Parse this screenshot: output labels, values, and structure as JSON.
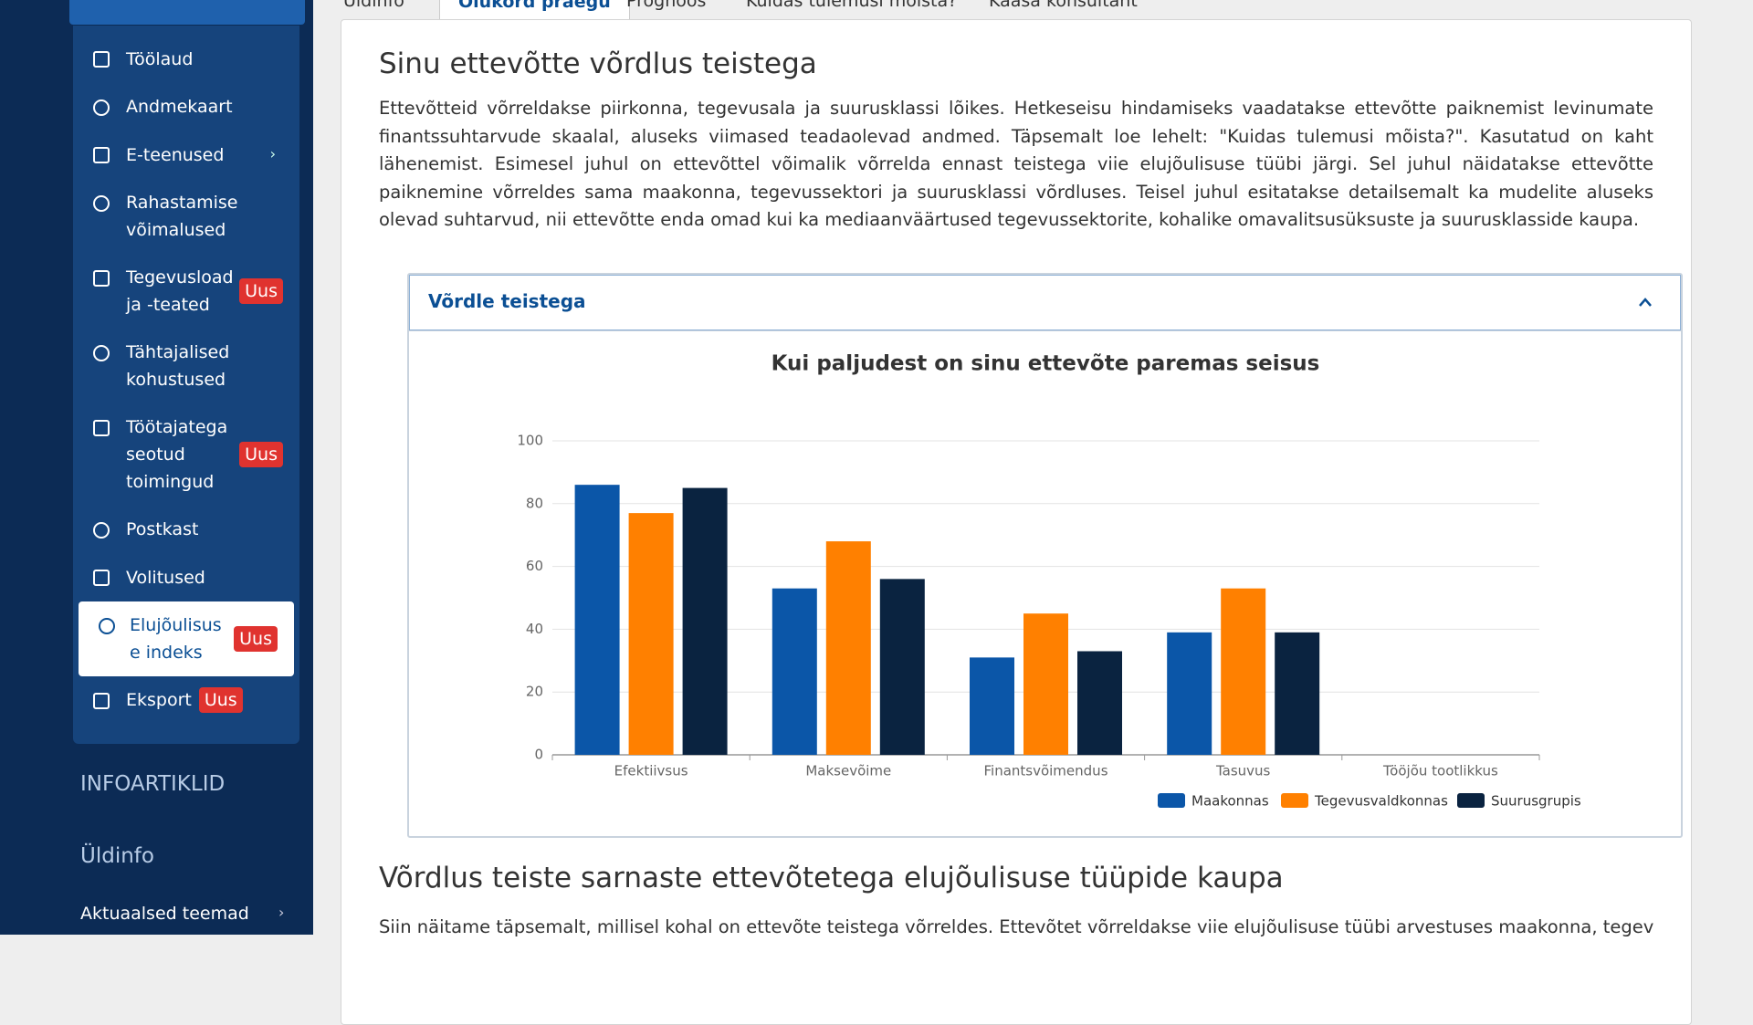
{
  "sidebar": {
    "items": [
      {
        "label": "Töölaud"
      },
      {
        "label": "Andmekaart"
      },
      {
        "label": "E-teenused"
      },
      {
        "label": "Rahastamise võimalused"
      },
      {
        "label": "Tegevusload ja -teated",
        "badge": "Uus"
      },
      {
        "label": "Tähtajalised kohustused"
      },
      {
        "label": "Töötajatega seotud toimingud",
        "badge": "Uus"
      },
      {
        "label": "Postkast"
      },
      {
        "label": "Volitused"
      },
      {
        "label": "Elujõulisuse indeks",
        "badge": "Uus"
      },
      {
        "label": "Eksport",
        "badge": "Uus"
      }
    ],
    "sections": [
      "INFOARTIKLID",
      "Üldinfo",
      "Aktuaalsed teemad"
    ]
  },
  "tabs": [
    "Üldinfo",
    "Olukord praegu",
    "Prognoos",
    "Kuidas tulemusi mõista?",
    "Kaasa konsultant"
  ],
  "content": {
    "heading": "Sinu ettevõtte võrdlus teistega",
    "paragraph": "Ettevõtteid võrreldakse piirkonna, tegevusala ja suurusklassi lõikes. Hetkeseisu hindamiseks vaadatakse ettevõtte paiknemist levinumate finantssuhtarvude skaalal, aluseks viimased teadaolevad andmed. Täpsemalt loe lehelt: \"Kuidas tulemusi mõista?\". Kasutatud on kaht lähenemist. Esimesel juhul on ettevõttel võimalik võrrelda ennast teistega viie elujõulisuse tüübi järgi. Sel juhul näidatakse ettevõtte paiknemine võrreldes sama maakonna, tegevussektori ja suurusklassi võrdluses. Teisel juhul esitatakse detailsemalt ka mudelite aluseks olevad suhtarvud, nii ettevõtte enda omad kui ka mediaanväärtused tegevussektorite, kohalike omavalitsusüksuste ja suurusklasside kaupa.",
    "accordion_title": "Võrdle teistega",
    "heading2": "Võrdlus teiste sarnaste ettevõtetega elujõulisuse tüüpide kaupa",
    "paragraph2": "Siin näitame täpsemalt, millisel kohal on ettevõte teistega võrreldes. Ettevõtet võrreldakse viie elujõulisuse tüübi arvestuses maakonna, tegevusalade"
  },
  "chart_data": {
    "type": "bar",
    "title": "Kui paljudest on sinu ettevõte paremas seisus",
    "categories": [
      "Efektiivsus",
      "Maksevõime",
      "Finantsvõimendus",
      "Tasuvus",
      "Tööjõu tootlikkus"
    ],
    "series": [
      {
        "name": "Maakonnas",
        "color": "#0b56a8",
        "values": [
          86,
          53,
          31,
          39,
          null
        ]
      },
      {
        "name": "Tegevusvaldkonnas",
        "color": "#ff8000",
        "values": [
          77,
          68,
          45,
          53,
          null
        ]
      },
      {
        "name": "Suurusgrupis",
        "color": "#0a2340",
        "values": [
          85,
          56,
          33,
          39,
          null
        ]
      }
    ],
    "ylim": [
      0,
      100
    ],
    "yticks": [
      0,
      20,
      40,
      60,
      80,
      100
    ],
    "grid": true,
    "legend": "bottom-right"
  }
}
